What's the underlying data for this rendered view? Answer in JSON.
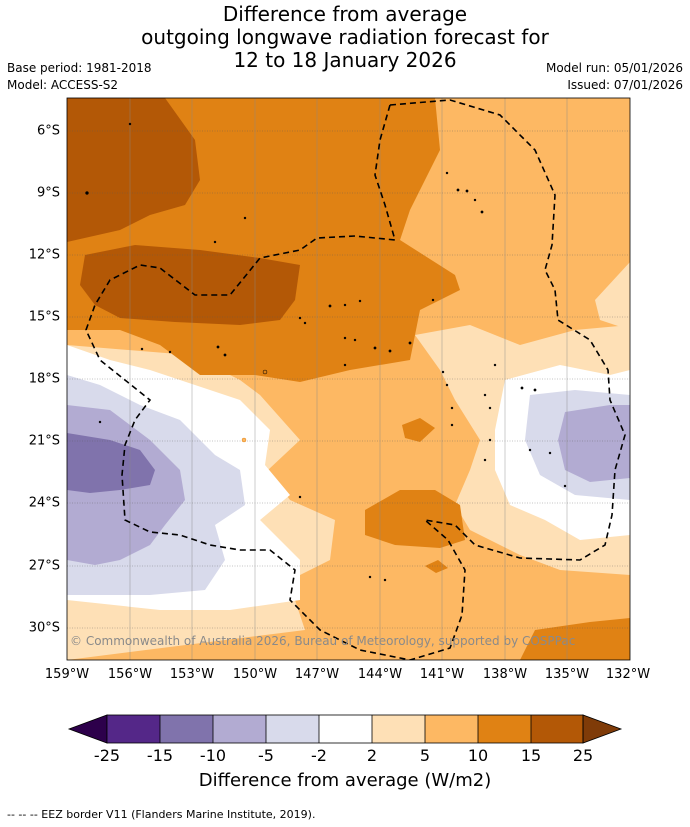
{
  "title": {
    "line1": "Difference from average",
    "line2": "outgoing longwave radiation forecast for",
    "line3": "12 to 18 January 2026"
  },
  "meta": {
    "base_period": "Base period: 1981-2018",
    "model": "Model: ACCESS-S2",
    "model_run": "Model run: 05/01/2026",
    "issued": "Issued: 07/01/2026"
  },
  "map": {
    "x_ticks": [
      "159°W",
      "156°W",
      "153°W",
      "150°W",
      "147°W",
      "144°W",
      "141°W",
      "138°W",
      "135°W",
      "132°W"
    ],
    "y_ticks": [
      "6°S",
      "9°S",
      "12°S",
      "15°S",
      "18°S",
      "21°S",
      "24°S",
      "27°S",
      "30°S"
    ],
    "copyright": "© Commonwealth of Australia 2026, Bureau of Meteorology, supported by COSPPac",
    "eez_line_color": "#000000"
  },
  "colorbar": {
    "ticks": [
      "-25",
      "-15",
      "-10",
      "-5",
      "-2",
      "2",
      "5",
      "10",
      "15",
      "25"
    ],
    "label": "Difference from average (W/m2)",
    "colors": {
      "below_min": "#2d004b",
      "bins": [
        "#542788",
        "#8073ac",
        "#b2abd2",
        "#d8daeb",
        "#ffffff",
        "#fee0b6",
        "#fdb863",
        "#e08214",
        "#b35806"
      ],
      "above_max": "#7f3b08"
    }
  },
  "footer": "--  --  -- EEZ border V11 (Flanders Marine Institute, 2019)."
}
